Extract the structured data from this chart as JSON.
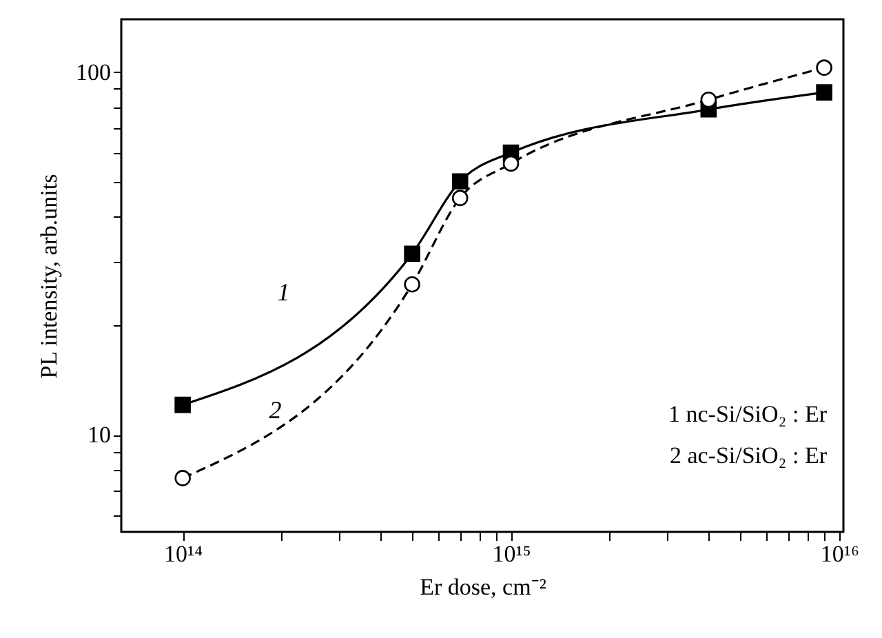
{
  "chart_data": {
    "type": "line",
    "xlabel": "Er dose, cm⁻²",
    "ylabel": "PL intensity, arb.units",
    "log": "xy",
    "xlim": [
      65000000000000.0,
      1.03e+16
    ],
    "ylim": [
      5.4,
      140
    ],
    "xticks": [
      {
        "value": 100000000000000.0,
        "label": "10¹⁴"
      },
      {
        "value": 200000000000000.0,
        "label": null
      },
      {
        "value": 300000000000000.0,
        "label": null
      },
      {
        "value": 400000000000000.0,
        "label": null
      },
      {
        "value": 500000000000000.0,
        "label": null
      },
      {
        "value": 600000000000000.0,
        "label": null
      },
      {
        "value": 700000000000000.0,
        "label": null
      },
      {
        "value": 800000000000000.0,
        "label": null
      },
      {
        "value": 900000000000000.0,
        "label": null
      },
      {
        "value": 1000000000000000.0,
        "label": "10¹⁵"
      },
      {
        "value": 2000000000000000.0,
        "label": null
      },
      {
        "value": 3000000000000000.0,
        "label": null
      },
      {
        "value": 4000000000000000.0,
        "label": null
      },
      {
        "value": 5000000000000000.0,
        "label": null
      },
      {
        "value": 6000000000000000.0,
        "label": null
      },
      {
        "value": 7000000000000000.0,
        "label": null
      },
      {
        "value": 8000000000000000.0,
        "label": null
      },
      {
        "value": 9000000000000000.0,
        "label": null
      },
      {
        "value": 1e+16,
        "label": "10¹⁶"
      }
    ],
    "yticks": [
      {
        "value": 6,
        "label": null
      },
      {
        "value": 7,
        "label": null
      },
      {
        "value": 8,
        "label": null
      },
      {
        "value": 9,
        "label": null
      },
      10,
      {
        "value": 20,
        "label": null
      },
      {
        "value": 30,
        "label": null
      },
      {
        "value": 40,
        "label": null
      },
      {
        "value": 50,
        "label": null
      },
      {
        "value": 60,
        "label": null
      },
      {
        "value": 70,
        "label": null
      },
      {
        "value": 80,
        "label": null
      },
      {
        "value": 90,
        "label": null
      },
      100
    ],
    "grid": false,
    "series": [
      {
        "name": "1",
        "color": "#000000",
        "marker": "square",
        "line_style": "solid",
        "x": [
          100000000000000.0,
          500000000000000.0,
          700000000000000.0,
          1000000000000000.0,
          4000000000000000.0,
          9000000000000000.0
        ],
        "values": [
          12.1,
          31.6,
          50,
          60,
          79,
          88
        ]
      },
      {
        "name": "2",
        "color": "#000000",
        "marker": "circle",
        "line_style": "dashed",
        "x": [
          100000000000000.0,
          500000000000000.0,
          700000000000000.0,
          1000000000000000.0,
          4000000000000000.0,
          9000000000000000.0
        ],
        "values": [
          7.6,
          26,
          45,
          56,
          84,
          103
        ]
      }
    ],
    "annotations": [
      "1 nc-Si/SiO₂ : Er",
      "2 ac-Si/SiO₂ : Er"
    ]
  }
}
